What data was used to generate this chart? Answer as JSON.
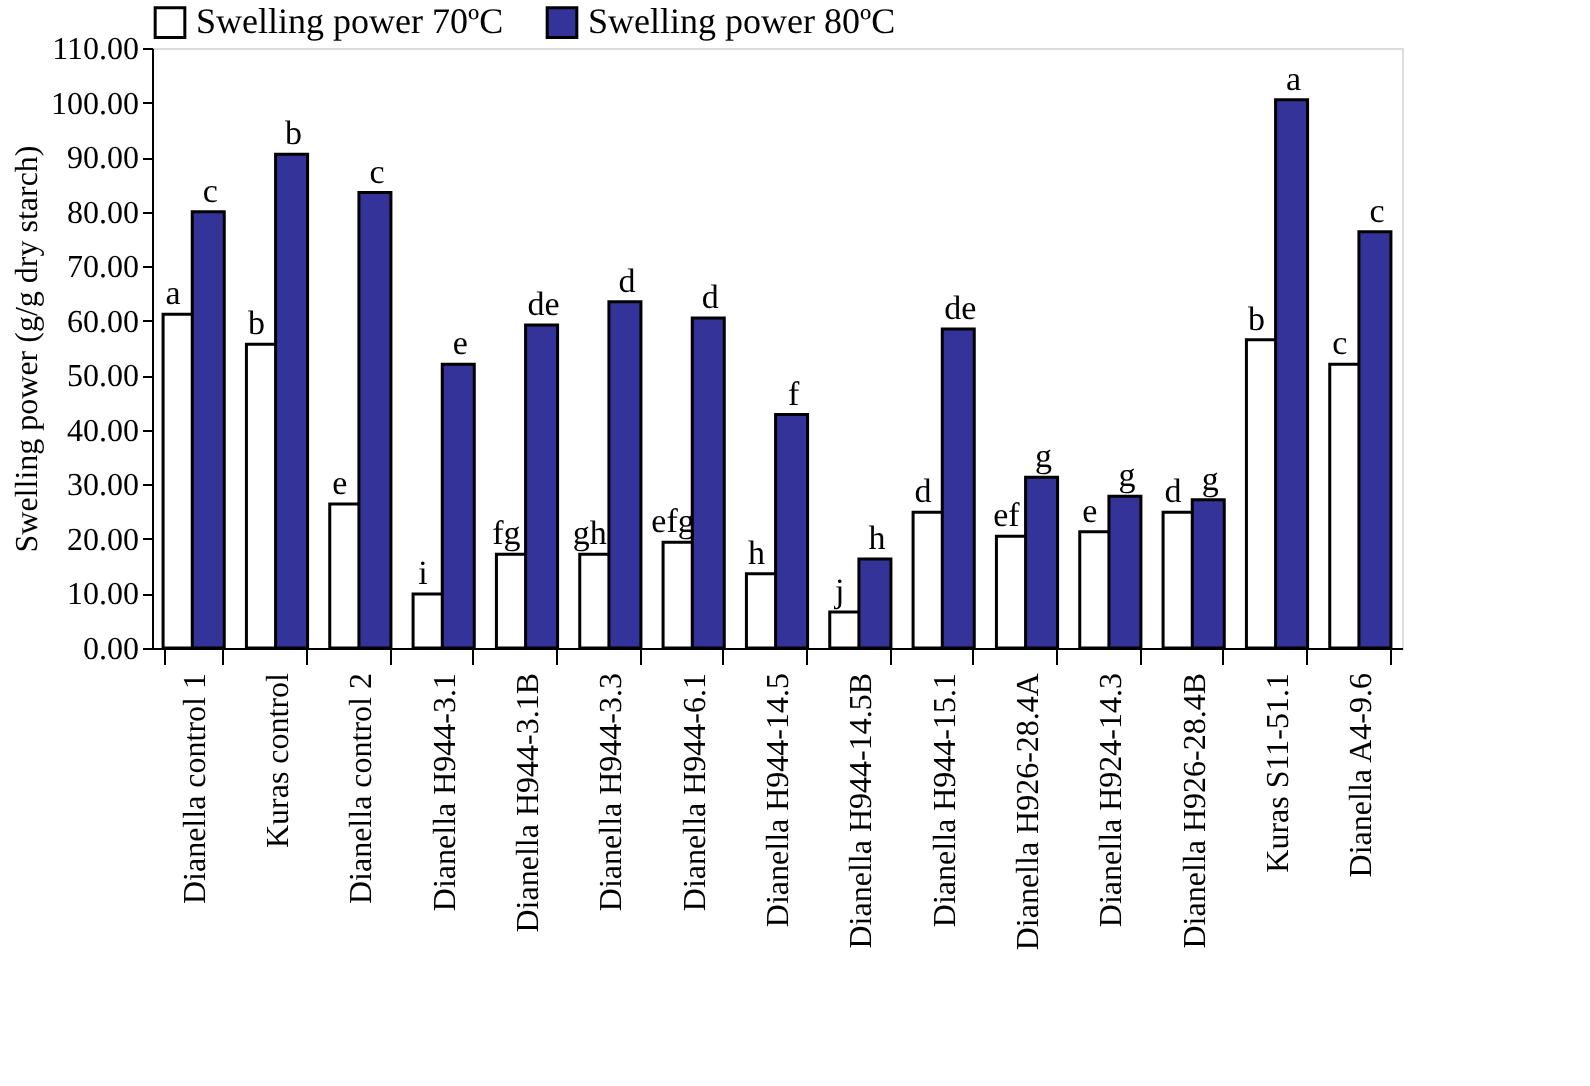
{
  "chart_data": {
    "type": "bar",
    "ylabel": "Swelling power (g/g dry starch)",
    "categories": [
      "Dianella control 1",
      "Kuras control",
      "Dianella control 2",
      "Dianella H944-3.1",
      "Dianella H944-3.1B",
      "Dianella H944-3.3",
      "Dianella H944-6.1",
      "Dianella H944-14.5",
      "Dianella H944-14.5B",
      "Dianella H944-15.1",
      "Dianella H926-28.4A",
      "Dianella H924-14.3",
      "Dianella H926-28.4B",
      "Kuras S11-51.1",
      "Dianella A4-9.6"
    ],
    "series": [
      {
        "name": "Swelling power 70ºC",
        "color": "#ffffff",
        "values": [
          61.2,
          55.7,
          26.4,
          9.9,
          17.2,
          17.2,
          19.4,
          13.6,
          6.6,
          24.9,
          20.5,
          21.3,
          24.9,
          56.5,
          52.0
        ]
      },
      {
        "name": "Swelling power 80ºC",
        "color": "#333399",
        "values": [
          80.0,
          90.5,
          83.5,
          52.0,
          59.2,
          63.5,
          60.5,
          42.8,
          16.3,
          58.5,
          31.3,
          27.8,
          27.2,
          100.5,
          76.3
        ]
      }
    ],
    "ylim": [
      0,
      110
    ],
    "yticks": [
      {
        "value": 0,
        "label": "0.00"
      },
      {
        "value": 10,
        "label": "10.00"
      },
      {
        "value": 20,
        "label": "20.00"
      },
      {
        "value": 30,
        "label": "30.00"
      },
      {
        "value": 40,
        "label": "40.00"
      },
      {
        "value": 50,
        "label": "50.00"
      },
      {
        "value": 60,
        "label": "60.00"
      },
      {
        "value": 70,
        "label": "70.00"
      },
      {
        "value": 80,
        "label": "80.00"
      },
      {
        "value": 90,
        "label": "90.00"
      },
      {
        "value": 100,
        "label": "100.00"
      },
      {
        "value": 110,
        "label": "110.00"
      }
    ],
    "grid": false,
    "legend": "top",
    "annotations": [
      {
        "text": "a",
        "x": "Dianella control 1",
        "y": 61.2
      },
      {
        "text": "c",
        "x": "Dianella control 1",
        "y": 80.0
      },
      {
        "text": "b",
        "x": "Kuras control",
        "y": 55.7
      },
      {
        "text": "b",
        "x": "Kuras control",
        "y": 90.5
      },
      {
        "text": "e",
        "x": "Dianella control 2",
        "y": 26.4
      },
      {
        "text": "c",
        "x": "Dianella control 2",
        "y": 83.5
      },
      {
        "text": "i",
        "x": "Dianella H944-3.1",
        "y": 9.9
      },
      {
        "text": "e",
        "x": "Dianella H944-3.1",
        "y": 52.0
      },
      {
        "text": "fg",
        "x": "Dianella H944-3.1B",
        "y": 17.2
      },
      {
        "text": "de",
        "x": "Dianella H944-3.1B",
        "y": 59.2
      },
      {
        "text": "gh",
        "x": "Dianella H944-3.3",
        "y": 17.2
      },
      {
        "text": "d",
        "x": "Dianella H944-3.3",
        "y": 63.5
      },
      {
        "text": "efg",
        "x": "Dianella H944-6.1",
        "y": 19.4
      },
      {
        "text": "d",
        "x": "Dianella H944-6.1",
        "y": 60.5
      },
      {
        "text": "h",
        "x": "Dianella H944-14.5",
        "y": 13.6
      },
      {
        "text": "f",
        "x": "Dianella H944-14.5",
        "y": 42.8
      },
      {
        "text": "j",
        "x": "Dianella H944-14.5B",
        "y": 6.6
      },
      {
        "text": "h",
        "x": "Dianella H944-14.5B",
        "y": 16.3
      },
      {
        "text": "d",
        "x": "Dianella H944-15.1",
        "y": 24.9
      },
      {
        "text": "de",
        "x": "Dianella H944-15.1",
        "y": 58.5
      },
      {
        "text": "ef",
        "x": "Dianella H926-28.4A",
        "y": 20.5
      },
      {
        "text": "g",
        "x": "Dianella H926-28.4A",
        "y": 31.3
      },
      {
        "text": "e",
        "x": "Dianella H924-14.3",
        "y": 21.3
      },
      {
        "text": "g",
        "x": "Dianella H924-14.3",
        "y": 27.8
      },
      {
        "text": "d",
        "x": "Dianella H926-28.4B",
        "y": 24.9
      },
      {
        "text": "g",
        "x": "Dianella H926-28.4B",
        "y": 27.2
      },
      {
        "text": "b",
        "x": "Kuras S11-51.1",
        "y": 56.5
      },
      {
        "text": "a",
        "x": "Kuras S11-51.1",
        "y": 100.5
      },
      {
        "text": "c",
        "x": "Dianella A4-9.6",
        "y": 52.0
      },
      {
        "text": "c",
        "x": "Dianella A4-9.6",
        "y": 76.3
      }
    ]
  }
}
